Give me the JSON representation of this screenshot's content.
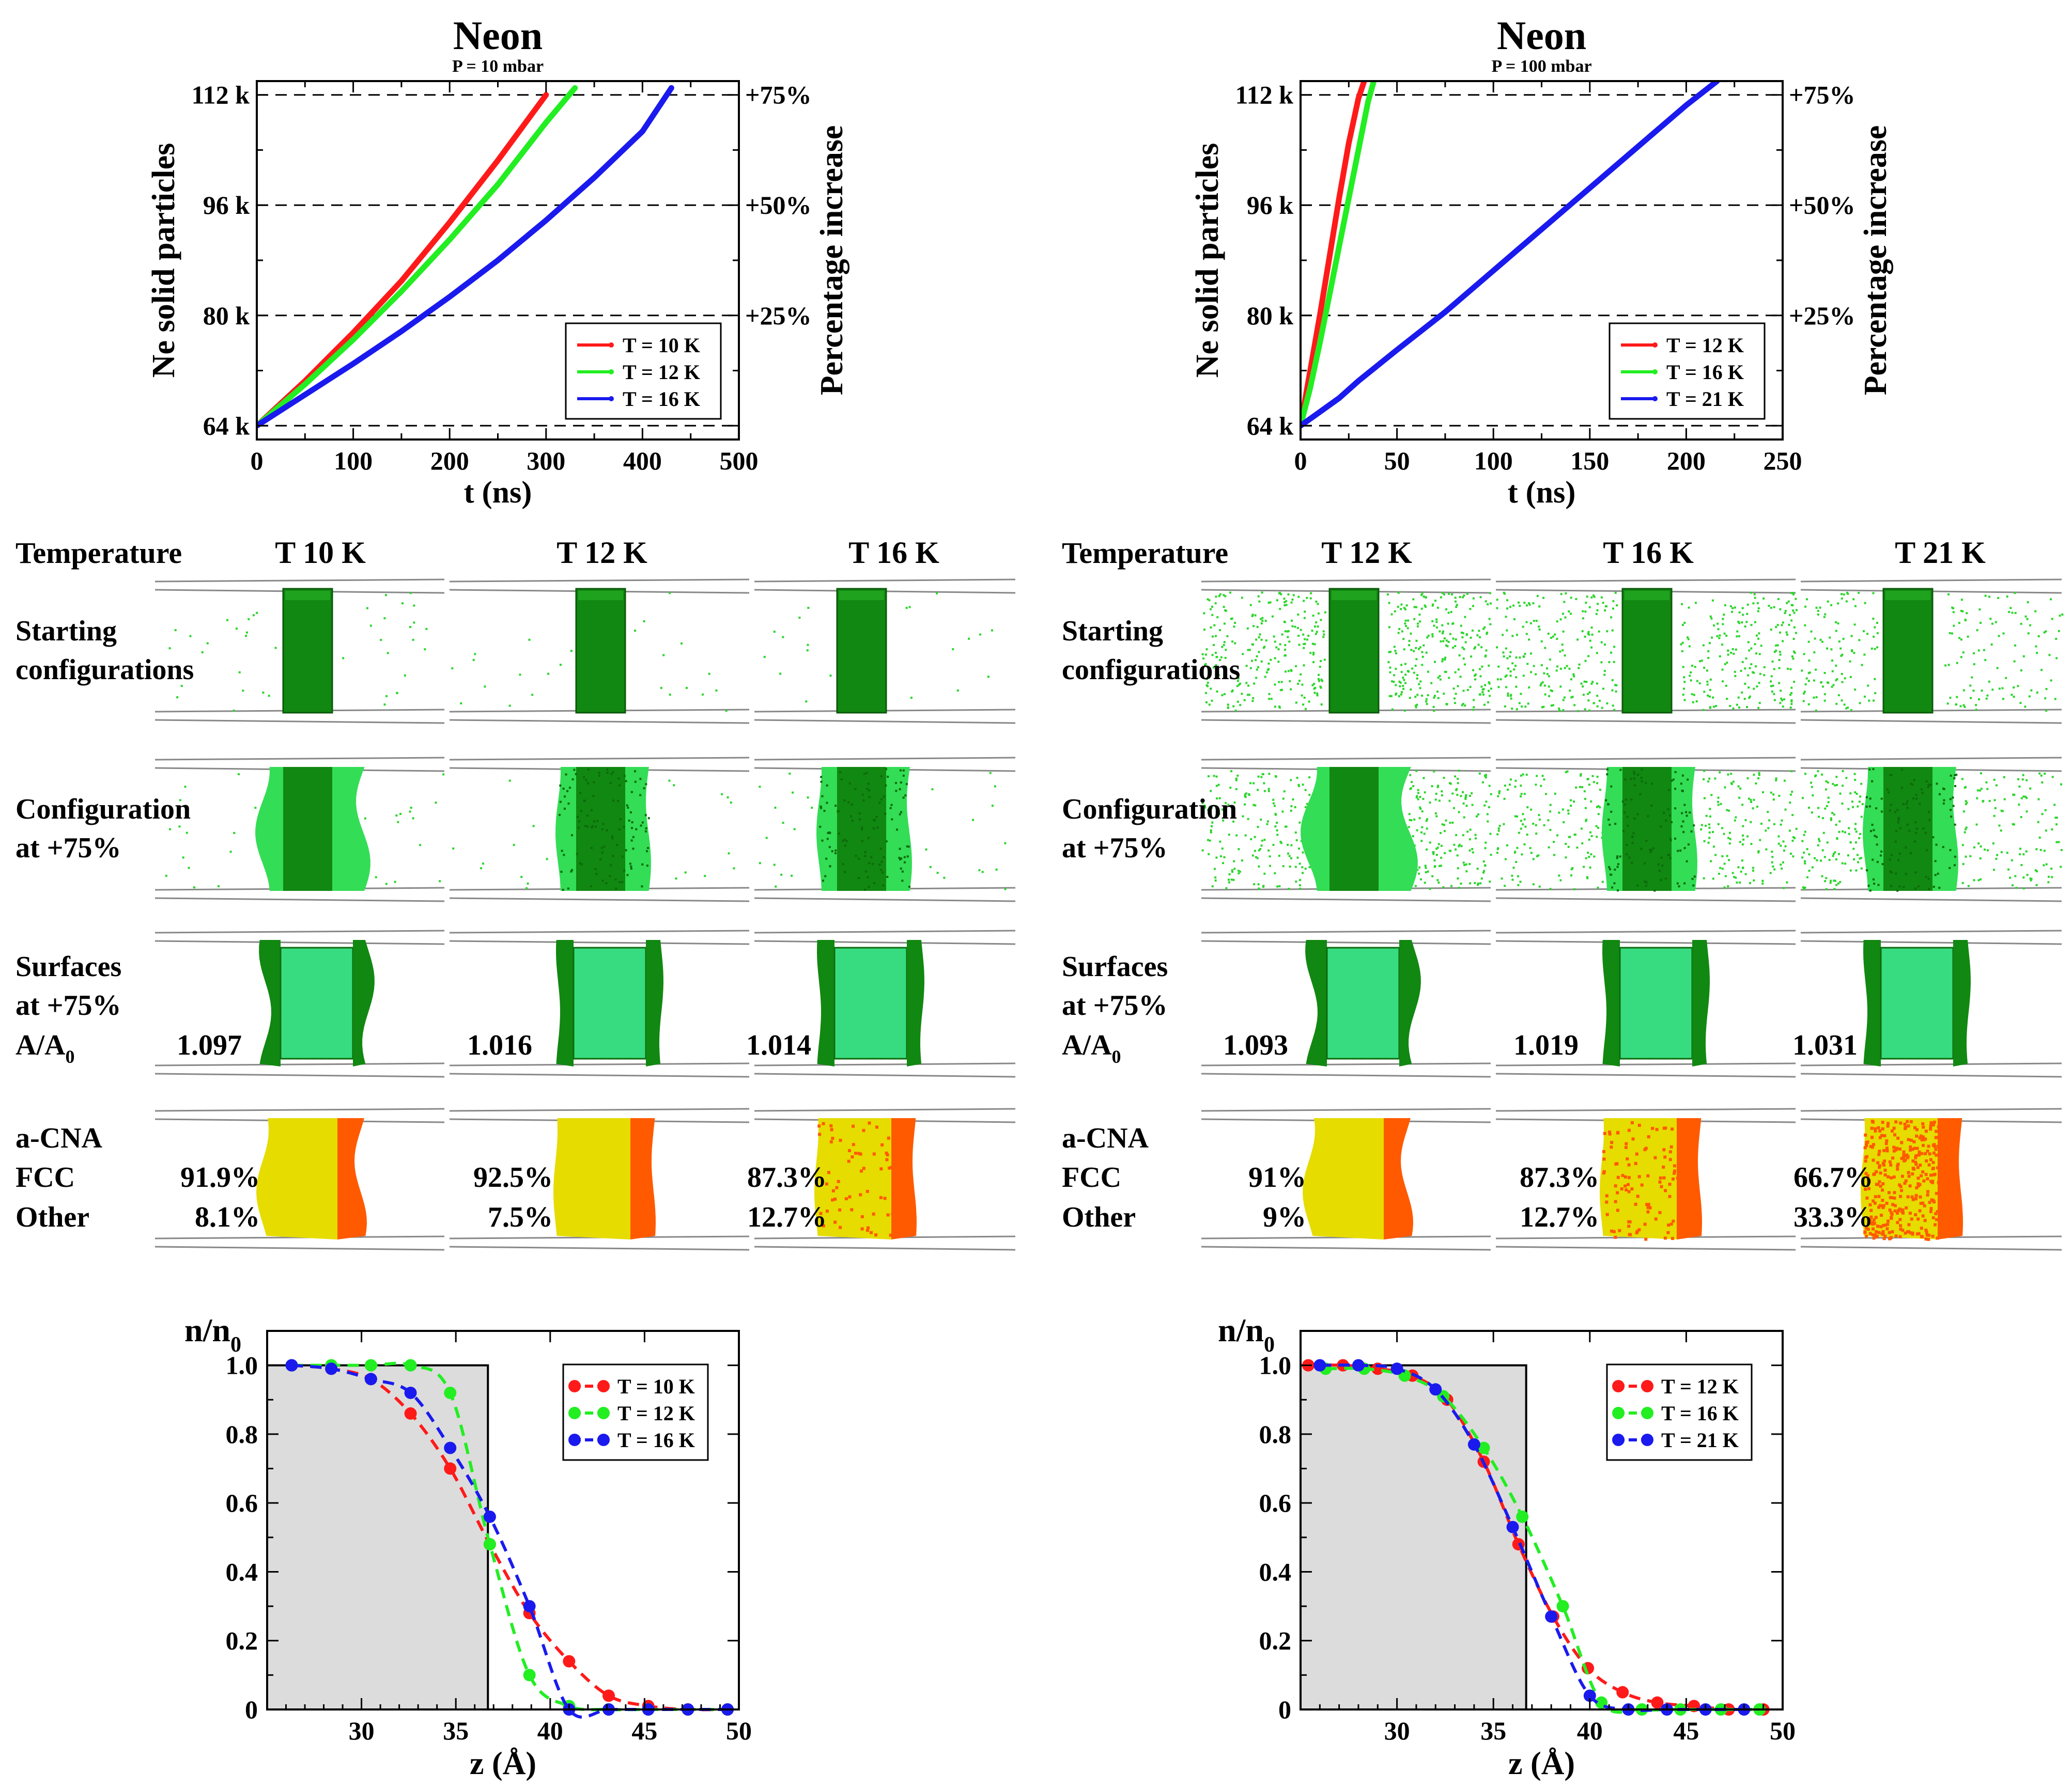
{
  "colors": {
    "red": "#ff1a1a",
    "green": "#22ee22",
    "blue": "#1a1aee",
    "slab": "#118811",
    "slab_light": "#33dd55",
    "surface": "#38dc80",
    "fcc": "#e6dc00",
    "other": "#ff5a00",
    "gray_region": "#dcdcdc"
  },
  "chart_data": [
    {
      "type": "line",
      "title": "Neon",
      "subtitle": "P = 10 mbar",
      "xlabel": "t (ns)",
      "ylabel": "Ne solid particles",
      "ylabel_right": "Percentage increase",
      "xlim": [
        0,
        500
      ],
      "ylim": [
        62000,
        114000
      ],
      "xticks": [
        0,
        100,
        200,
        300,
        400,
        500
      ],
      "yticks": [
        64000,
        80000,
        96000,
        112000
      ],
      "ytick_labels": [
        "64 k",
        "80 k",
        "96 k",
        "112 k"
      ],
      "right_tick_labels": [
        "+25%",
        "+50%",
        "+75%"
      ],
      "right_tick_values": [
        80000,
        96000,
        112000
      ],
      "hlines": [
        64000,
        80000,
        96000,
        112000
      ],
      "legend_position": "lower-right",
      "series": [
        {
          "name": "T = 10 K",
          "color": "red",
          "x": [
            0,
            50,
            100,
            150,
            200,
            250,
            300
          ],
          "y": [
            64000,
            70500,
            77500,
            85000,
            93500,
            102500,
            112000
          ]
        },
        {
          "name": "T = 12 K",
          "color": "green",
          "x": [
            0,
            50,
            100,
            150,
            200,
            250,
            300,
            330
          ],
          "y": [
            64000,
            70000,
            76500,
            83500,
            91000,
            99000,
            108000,
            113000
          ]
        },
        {
          "name": "T = 16 K",
          "color": "blue",
          "x": [
            0,
            50,
            100,
            150,
            200,
            250,
            300,
            350,
            400,
            430
          ],
          "y": [
            64000,
            68500,
            73000,
            77700,
            82700,
            88000,
            93800,
            100000,
            106700,
            113000
          ]
        }
      ]
    },
    {
      "type": "line",
      "title": "Neon",
      "subtitle": "P = 100 mbar",
      "xlabel": "t (ns)",
      "ylabel": "Ne solid particles",
      "ylabel_right": "Percentage increase",
      "xlim": [
        0,
        250
      ],
      "ylim": [
        62000,
        114000
      ],
      "xticks": [
        0,
        50,
        100,
        150,
        200,
        250
      ],
      "yticks": [
        64000,
        80000,
        96000,
        112000
      ],
      "ytick_labels": [
        "64 k",
        "80 k",
        "96 k",
        "112 k"
      ],
      "right_tick_labels": [
        "+25%",
        "+50%",
        "+75%"
      ],
      "right_tick_values": [
        80000,
        96000,
        112000
      ],
      "hlines": [
        64000,
        80000,
        96000,
        112000
      ],
      "legend_position": "lower-right",
      "series": [
        {
          "name": "T = 12 K",
          "color": "red",
          "x": [
            0,
            5,
            10,
            15,
            20,
            25,
            30,
            33
          ],
          "y": [
            64000,
            72000,
            80000,
            88500,
            97000,
            105000,
            111500,
            114000
          ]
        },
        {
          "name": "T = 16 K",
          "color": "green",
          "x": [
            0,
            5,
            10,
            15,
            20,
            25,
            30,
            35,
            38
          ],
          "y": [
            64000,
            69500,
            76000,
            83000,
            90000,
            97000,
            104000,
            111000,
            114000
          ]
        },
        {
          "name": "T = 21 K",
          "color": "blue",
          "x": [
            0,
            10,
            20,
            30,
            50,
            75,
            100,
            125,
            150,
            175,
            200,
            216
          ],
          "y": [
            64000,
            66000,
            68000,
            70500,
            75000,
            80500,
            86500,
            92500,
            98500,
            104500,
            110500,
            114000
          ]
        }
      ]
    },
    {
      "type": "line",
      "xlabel": "z (Å)",
      "ylabel": "n/n",
      "ylabel_sub": "0",
      "xlim": [
        25,
        50
      ],
      "ylim": [
        0,
        1.1
      ],
      "xticks": [
        30,
        35,
        40,
        45,
        50
      ],
      "yticks": [
        0,
        0.2,
        0.4,
        0.6,
        0.8,
        1.0
      ],
      "ytick_labels": [
        "0",
        "0.2",
        "0.4",
        "0.6",
        "0.8",
        "1.0"
      ],
      "step_region": {
        "x_end": 36.7,
        "y": 1.0
      },
      "legend_position": "top-right",
      "series": [
        {
          "name": "T = 10 K",
          "color": "red",
          "x": [
            26.3,
            28.4,
            30.5,
            32.6,
            34.7,
            36.8,
            38.9,
            41.0,
            43.1,
            45.2,
            47.3,
            49.4
          ],
          "y": [
            1.0,
            0.99,
            0.96,
            0.86,
            0.7,
            0.48,
            0.28,
            0.14,
            0.04,
            0.01,
            0.0,
            0.0
          ]
        },
        {
          "name": "T = 12 K",
          "color": "green",
          "x": [
            26.3,
            28.4,
            30.5,
            32.6,
            34.7,
            36.8,
            38.9,
            41.0,
            43.1,
            45.2,
            47.3,
            49.4
          ],
          "y": [
            1.0,
            1.0,
            1.0,
            1.0,
            0.92,
            0.48,
            0.1,
            0.01,
            0.0,
            0.0,
            0.0,
            0.0
          ]
        },
        {
          "name": "T = 16 K",
          "color": "blue",
          "x": [
            26.3,
            28.4,
            30.5,
            32.6,
            34.7,
            36.8,
            38.9,
            41.0,
            43.1,
            45.2,
            47.3,
            49.4
          ],
          "y": [
            1.0,
            0.99,
            0.96,
            0.92,
            0.76,
            0.56,
            0.3,
            0.0,
            0.0,
            0.0,
            0.0,
            0.0
          ]
        }
      ]
    },
    {
      "type": "line",
      "xlabel": "z (Å)",
      "ylabel": "n/n",
      "ylabel_sub": "0",
      "xlim": [
        25,
        50
      ],
      "ylim": [
        0,
        1.1
      ],
      "xticks": [
        30,
        35,
        40,
        45,
        50
      ],
      "yticks": [
        0,
        0.2,
        0.4,
        0.6,
        0.8,
        1.0
      ],
      "ytick_labels": [
        "0",
        "0.2",
        "0.4",
        "0.6",
        "0.8",
        "1.0"
      ],
      "step_region": {
        "x_end": 36.7,
        "y": 1.0
      },
      "legend_position": "top-right",
      "series": [
        {
          "name": "T = 12 K",
          "color": "red",
          "x": [
            25.4,
            27.2,
            29.0,
            30.8,
            32.6,
            34.5,
            36.3,
            38.1,
            39.9,
            41.7,
            43.5,
            45.4,
            47.2,
            49.0
          ],
          "y": [
            1.0,
            1.0,
            0.99,
            0.97,
            0.9,
            0.72,
            0.48,
            0.27,
            0.12,
            0.05,
            0.02,
            0.01,
            0.0,
            0.0
          ]
        },
        {
          "name": "T = 16 K",
          "color": "green",
          "x": [
            26.3,
            28.3,
            30.4,
            32.4,
            34.5,
            36.5,
            38.6,
            40.6,
            42.7,
            44.7,
            46.8,
            48.8
          ],
          "y": [
            0.99,
            0.99,
            0.97,
            0.91,
            0.76,
            0.56,
            0.3,
            0.02,
            0.0,
            0.0,
            0.0,
            0.0
          ]
        },
        {
          "name": "T = 21 K",
          "color": "blue",
          "x": [
            26.0,
            28.0,
            30.0,
            32.0,
            34.0,
            36.0,
            38.0,
            40.0,
            42.0,
            44.0,
            46.0,
            48.0
          ],
          "y": [
            1.0,
            1.0,
            0.99,
            0.93,
            0.77,
            0.53,
            0.27,
            0.04,
            0.0,
            0.0,
            0.0,
            0.0
          ]
        }
      ]
    }
  ],
  "panels": [
    {
      "temperature_label": "Temperature",
      "temps": [
        "T 10 K",
        "T 12 K",
        "T 16 K"
      ],
      "row_starting": [
        "Starting",
        "configurations"
      ],
      "row_config": [
        "Configuration",
        "at +75%"
      ],
      "row_surfaces": [
        "Surfaces",
        "at +75%"
      ],
      "area_label": "A/A",
      "area_sub": "0",
      "area_values": [
        "1.097",
        "1.016",
        "1.014"
      ],
      "cna_labels": [
        "a-CNA",
        "FCC",
        "Other"
      ],
      "fcc_values": [
        "91.9%",
        "92.5%",
        "87.3%"
      ],
      "other_values": [
        "8.1%",
        "7.5%",
        "12.7%"
      ]
    },
    {
      "temperature_label": "Temperature",
      "temps": [
        "T 12 K",
        "T 16 K",
        "T 21 K"
      ],
      "row_starting": [
        "Starting",
        "configurations"
      ],
      "row_config": [
        "Configuration",
        "at +75%"
      ],
      "row_surfaces": [
        "Surfaces",
        "at +75%"
      ],
      "area_label": "A/A",
      "area_sub": "0",
      "area_values": [
        "1.093",
        "1.019",
        "1.031"
      ],
      "cna_labels": [
        "a-CNA",
        "FCC",
        "Other"
      ],
      "fcc_values": [
        "91%",
        "87.3%",
        "66.7%"
      ],
      "other_values": [
        "9%",
        "12.7%",
        "33.3%"
      ]
    }
  ]
}
